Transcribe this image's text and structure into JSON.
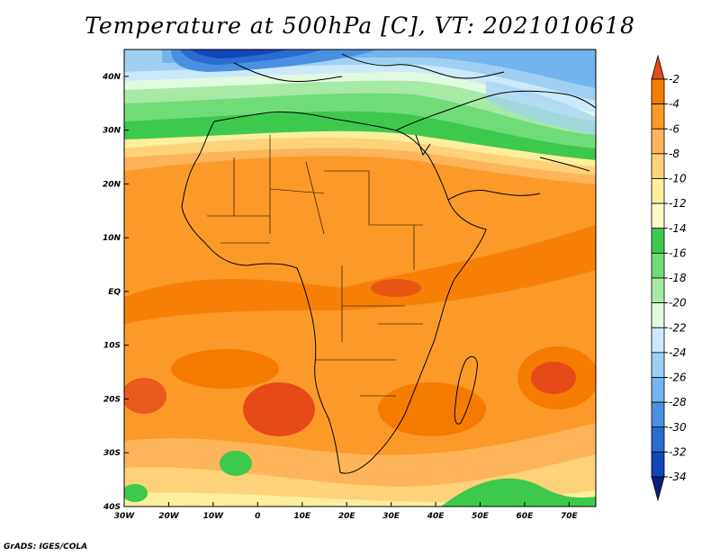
{
  "title": "Temperature at 500hPa [C], VT: 2021010618",
  "footer": "GrADS: IGES/COLA",
  "map": {
    "region": "Africa",
    "lon_range": [
      -30,
      76
    ],
    "lat_range": [
      -40,
      45
    ],
    "lon_ticks": [
      "30W",
      "20W",
      "10W",
      "0",
      "10E",
      "20E",
      "30E",
      "40E",
      "50E",
      "60E",
      "70E"
    ],
    "lat_ticks": [
      "40N",
      "30N",
      "20N",
      "10N",
      "EQ",
      "10S",
      "20S",
      "30S",
      "40S"
    ],
    "land_outline_color": "#000000"
  },
  "colorbar": {
    "unit": "C",
    "levels": [
      "-2",
      "-4",
      "-6",
      "-8",
      "-10",
      "-12",
      "-14",
      "-16",
      "-18",
      "-20",
      "-22",
      "-24",
      "-26",
      "-28",
      "-30",
      "-32",
      "-34"
    ],
    "colors": [
      "#e64a19",
      "#f57c00",
      "#fb9a29",
      "#fdb45a",
      "#fdd27a",
      "#fcef9e",
      "#fcfbc8",
      "#3cc94c",
      "#70dc78",
      "#a6eaa6",
      "#e2fbe0",
      "#cce9fb",
      "#9fd0f4",
      "#72b4ed",
      "#4a90e0",
      "#2a6bd0",
      "#1346b8",
      "#0b1f80"
    ]
  }
}
